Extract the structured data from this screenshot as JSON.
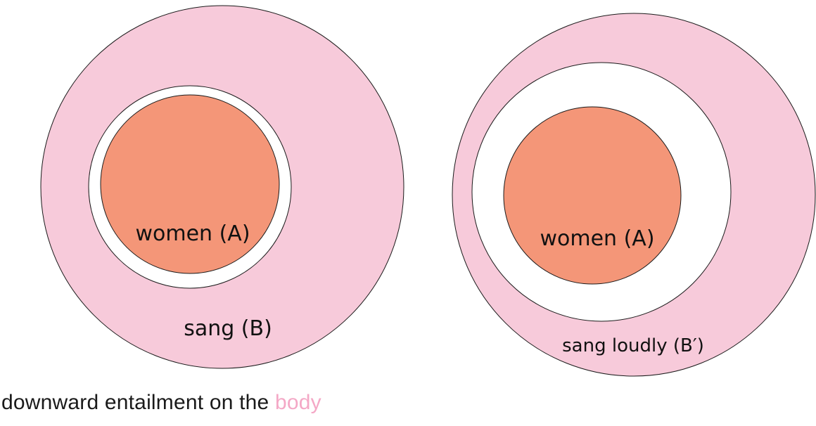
{
  "colors": {
    "outer_fill": "#f7cada",
    "inner_fill": "#f49678",
    "gap_fill": "#ffffff",
    "stroke": "#1a1a1a",
    "accent": "#f4a8c6"
  },
  "diagrams": [
    {
      "inner_label": "women (A)",
      "outer_label": "sang (B)"
    },
    {
      "inner_label": "women (A)",
      "outer_label": "sang loudly (B′)"
    }
  ],
  "caption": {
    "prefix": "downward entailment on the ",
    "accent_word": "body"
  }
}
